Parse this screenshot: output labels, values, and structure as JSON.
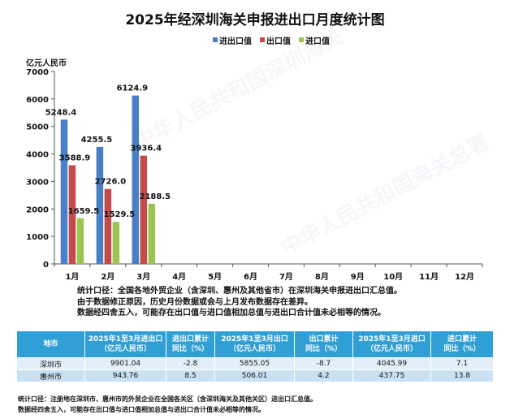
{
  "colors": {
    "export_import": "#4a7ec6",
    "export": "#c64a4a",
    "import": "#9bc553",
    "table_header": "#2f9fd6"
  },
  "chart_data": {
    "type": "bar",
    "title": "2025年经深圳海关申报进出口月度统计图",
    "ylabel": "亿元人民币",
    "xlabel": "",
    "ylim": [
      0,
      7000
    ],
    "yticks": [
      0,
      1000,
      2000,
      3000,
      4000,
      5000,
      6000,
      7000
    ],
    "categories": [
      "1月",
      "2月",
      "3月",
      "4月",
      "5月",
      "6月",
      "7月",
      "8月",
      "9月",
      "10月",
      "11月",
      "12月"
    ],
    "legend_position": "top",
    "series": [
      {
        "name": "进出口值",
        "values": [
          5248.4,
          4255.5,
          6124.9,
          null,
          null,
          null,
          null,
          null,
          null,
          null,
          null,
          null
        ],
        "labels": [
          "5248.4",
          "4255.5",
          "6124.9"
        ]
      },
      {
        "name": "出口值",
        "values": [
          3588.9,
          2726.0,
          3936.4,
          null,
          null,
          null,
          null,
          null,
          null,
          null,
          null,
          null
        ],
        "labels": [
          "3588.9",
          "2726.0",
          "3936.4"
        ]
      },
      {
        "name": "进口值",
        "values": [
          1659.5,
          1529.5,
          2188.5,
          null,
          null,
          null,
          null,
          null,
          null,
          null,
          null,
          null
        ],
        "labels": [
          "1659.5",
          "1529.5",
          "2188.5"
        ]
      }
    ]
  },
  "notes": [
    "统计口径：全国各地外贸企业（含深圳、惠州及其他省市）在深圳海关申报进出口汇总值。",
    "由于数据修正原因，历史月份数据或会与上月发布数据存在差异。",
    "数据经四舍五入，可能存在出口值与进口值相加总值与进出口合计值未必相等的情况。"
  ],
  "table": {
    "headers": [
      [
        "地市"
      ],
      [
        "2025年1至3月进出口",
        "（亿元人民币）"
      ],
      [
        "进出口累计",
        "同比（%）"
      ],
      [
        "2025年1至3月出口",
        "（亿元人民币）"
      ],
      [
        "出口累计",
        "同比（%）"
      ],
      [
        "2025年1至3月进口",
        "（亿元人民币）"
      ],
      [
        "进口累计",
        "同比（%）"
      ]
    ],
    "rows": [
      [
        "深圳市",
        "9901.04",
        "-2.8",
        "5855.05",
        "-8.7",
        "4045.99",
        "7.1"
      ],
      [
        "惠州市",
        "943.76",
        "8.5",
        "506.01",
        "4.2",
        "437.75",
        "13.8"
      ]
    ]
  },
  "footnotes": [
    "统计口径：注册地在深圳市、惠州市的外贸企业在全国各关区（含深圳海关及其他关区）进出口汇总值。",
    "数据经四舍五入，可能存在出口值与进口值相加总值与进出口合计值未必相等的情况。"
  ],
  "watermark": "中华人民共和国深圳海关总署"
}
